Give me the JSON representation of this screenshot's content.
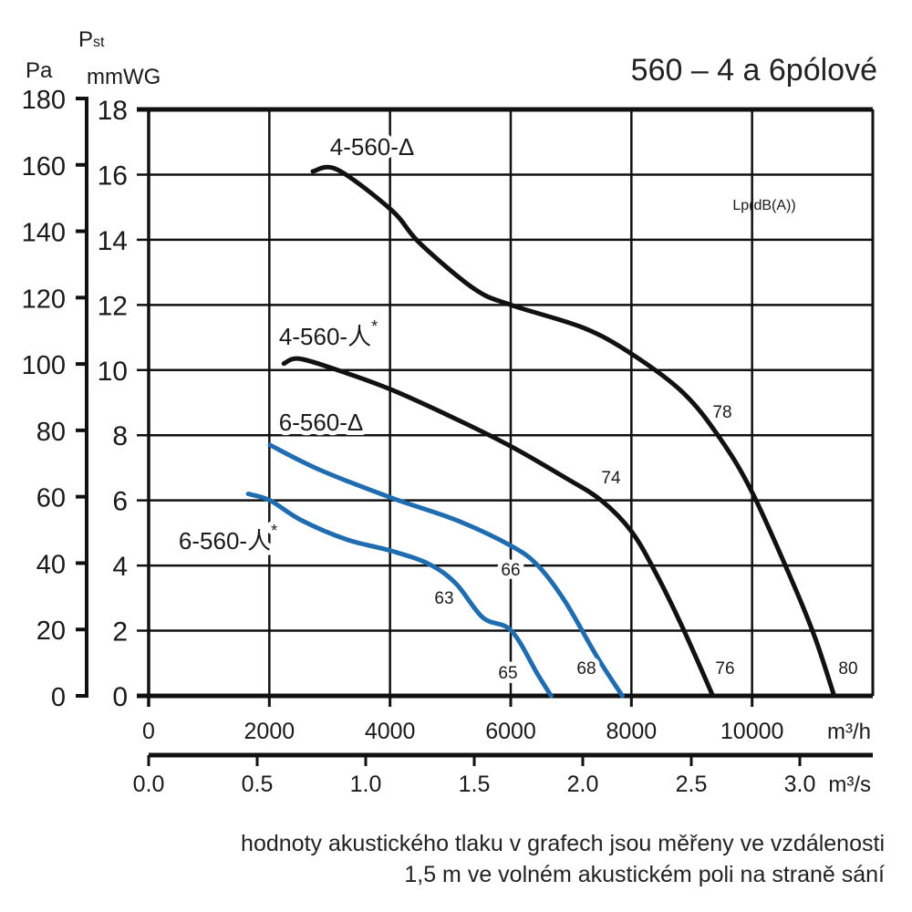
{
  "chart_data": {
    "type": "line",
    "title": "560 – 4 a 6pólové",
    "ylabel_symbol": "Pst",
    "ylabel_units": [
      "Pa",
      "mmWG"
    ],
    "xlabel": "m³/h",
    "xlabel_secondary": "m³/s",
    "xlim": [
      0,
      12000
    ],
    "ylim": [
      0,
      18
    ],
    "ylim_pa": [
      0,
      180
    ],
    "xticks": [
      "0",
      "2000",
      "4000",
      "6000",
      "8000",
      "10000"
    ],
    "xticks_secondary": [
      "0.0",
      "0.5",
      "1.0",
      "1.5",
      "2.0",
      "2.5",
      "3.0"
    ],
    "yticks_mmwg": [
      "0",
      "2",
      "4",
      "6",
      "8",
      "10",
      "12",
      "14",
      "16",
      "18"
    ],
    "yticks_pa": [
      "0",
      "20",
      "40",
      "60",
      "80",
      "100",
      "120",
      "140",
      "160",
      "180"
    ],
    "grid": true,
    "noise_label": "Lp(dB(A))",
    "series": [
      {
        "name": "4-560-Δ",
        "color": "#111111",
        "x": [
          2720,
          3130,
          4030,
          4490,
          5390,
          6000,
          7200,
          8000,
          8860,
          9470,
          10000,
          10680,
          11050,
          11360
        ],
        "y": [
          16.1,
          16.15,
          14.9,
          13.9,
          12.5,
          12.0,
          11.3,
          10.5,
          9.3,
          7.9,
          6.25,
          3.45,
          1.75,
          0
        ],
        "noise_labels": [
          "78",
          "80"
        ]
      },
      {
        "name": "4-560-人*",
        "color": "#111111",
        "x": [
          2240,
          2490,
          3130,
          4020,
          5090,
          6010,
          6900,
          7500,
          8000,
          8410,
          8860,
          9350
        ],
        "y": [
          10.2,
          10.35,
          10.0,
          9.4,
          8.5,
          7.65,
          6.7,
          6.0,
          5.05,
          3.75,
          2.05,
          0
        ],
        "noise_labels": [
          "74",
          "76"
        ]
      },
      {
        "name": "6-560-Δ",
        "color": "#1f6db0",
        "x": [
          2010,
          2820,
          4020,
          5090,
          6010,
          6450,
          6900,
          7430,
          7850
        ],
        "y": [
          7.7,
          6.95,
          6.08,
          5.4,
          4.6,
          4.0,
          2.9,
          1.2,
          0
        ],
        "noise_labels": [
          "66",
          "68"
        ]
      },
      {
        "name": "6-560-人*",
        "color": "#1f6db0",
        "x": [
          1650,
          2010,
          2520,
          3280,
          4020,
          4640,
          5090,
          5540,
          6010,
          6450,
          6670
        ],
        "y": [
          6.2,
          6.0,
          5.4,
          4.8,
          4.45,
          4.05,
          3.45,
          2.4,
          2.0,
          0.65,
          0
        ],
        "noise_labels": [
          "63",
          "65"
        ]
      }
    ]
  },
  "footnote": [
    "hodnoty akustického tlaku v grafech jsou měřeny ve vzdálenosti",
    "1,5 m ve volném akustickém poli na straně sání"
  ]
}
